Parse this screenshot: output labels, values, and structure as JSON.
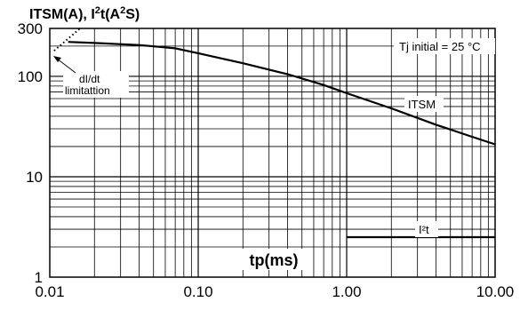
{
  "chart_data": {
    "type": "line",
    "title_main": "ITSM(A), I",
    "title_sup1": "2",
    "title_mid": "t(A",
    "title_sup2": "2",
    "title_end": "S)",
    "xlabel": "tp(ms)",
    "x_scale": "log",
    "y_scale": "log",
    "xlim": [
      0.01,
      10
    ],
    "ylim": [
      1,
      300
    ],
    "grid": true,
    "x_ticks": [
      {
        "value": 0.01,
        "label": "0.01"
      },
      {
        "value": 0.1,
        "label": "0.10"
      },
      {
        "value": 1,
        "label": "1.00"
      },
      {
        "value": 10,
        "label": "10.00"
      }
    ],
    "y_ticks": [
      {
        "value": 1,
        "label": "1"
      },
      {
        "value": 10,
        "label": "10"
      },
      {
        "value": 100,
        "label": "100"
      },
      {
        "value": 300,
        "label": "300"
      }
    ],
    "series": [
      {
        "name": "ITSM",
        "color": "#000000",
        "x": [
          0.0133,
          0.02,
          0.04,
          0.07,
          0.1,
          0.2,
          0.4,
          0.7,
          1.0,
          2.0,
          4.0,
          7.0,
          10.0
        ],
        "y": [
          220,
          215,
          205,
          190,
          170,
          135,
          105,
          82,
          68,
          48,
          33,
          25,
          21
        ]
      },
      {
        "name": "I²t",
        "color": "#000000",
        "x": [
          1.0,
          10.0
        ],
        "y": [
          2.5,
          2.5
        ]
      }
    ],
    "limit_line": {
      "x": [
        0.0107,
        0.016
      ],
      "y": [
        180,
        300
      ]
    },
    "annotations": {
      "tj_label": "Tj initial = 25 °C",
      "itsm_label": "ITSM",
      "i2t_label": "I²t",
      "didt_line1": "dI/dt",
      "didt_line2": "limitattion"
    }
  }
}
